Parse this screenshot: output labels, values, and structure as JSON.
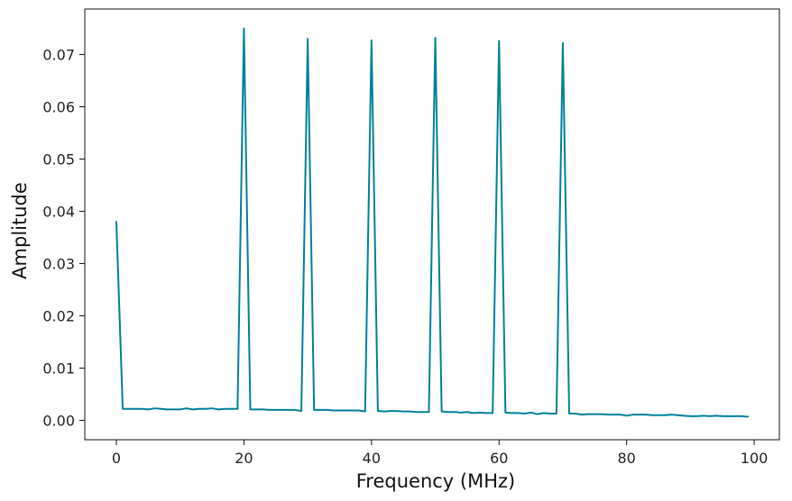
{
  "chart_data": {
    "type": "line",
    "xlabel": "Frequency (MHz)",
    "ylabel": "Amplitude",
    "xlim": [
      -4.95,
      103.95
    ],
    "ylim": [
      -0.0037,
      0.0787
    ],
    "x_ticks": [
      0,
      20,
      40,
      60,
      80,
      100
    ],
    "y_ticks": [
      0.0,
      0.01,
      0.02,
      0.03,
      0.04,
      0.05,
      0.06,
      0.07
    ],
    "x_tick_labels": [
      "0",
      "20",
      "40",
      "60",
      "80",
      "100"
    ],
    "y_tick_labels": [
      "0.00",
      "0.01",
      "0.02",
      "0.03",
      "0.04",
      "0.05",
      "0.06",
      "0.07"
    ],
    "grid": false,
    "legend": "none",
    "series": [
      {
        "color": "#00809b",
        "x": [
          0,
          1,
          2,
          3,
          4,
          5,
          6,
          7,
          8,
          9,
          10,
          11,
          12,
          13,
          14,
          15,
          16,
          17,
          18,
          19,
          20,
          21,
          22,
          23,
          24,
          25,
          26,
          27,
          28,
          29,
          30,
          31,
          32,
          33,
          34,
          35,
          36,
          37,
          38,
          39,
          40,
          41,
          42,
          43,
          44,
          45,
          46,
          47,
          48,
          49,
          50,
          51,
          52,
          53,
          54,
          55,
          56,
          57,
          58,
          59,
          60,
          61,
          62,
          63,
          64,
          65,
          66,
          67,
          68,
          69,
          70,
          71,
          72,
          73,
          74,
          75,
          76,
          77,
          78,
          79,
          80,
          81,
          82,
          83,
          84,
          85,
          86,
          87,
          88,
          89,
          90,
          91,
          92,
          93,
          94,
          95,
          96,
          97,
          98,
          99
        ],
        "y": [
          0.038,
          0.0022,
          0.0022,
          0.0022,
          0.0022,
          0.0021,
          0.0023,
          0.0022,
          0.0021,
          0.0021,
          0.0021,
          0.0023,
          0.0021,
          0.0022,
          0.0022,
          0.0023,
          0.0021,
          0.0022,
          0.0022,
          0.0022,
          0.075,
          0.0021,
          0.0021,
          0.0021,
          0.002,
          0.002,
          0.002,
          0.002,
          0.002,
          0.0018,
          0.073,
          0.002,
          0.002,
          0.002,
          0.0019,
          0.0019,
          0.0019,
          0.0019,
          0.0019,
          0.0017,
          0.0727,
          0.0018,
          0.0017,
          0.0018,
          0.0018,
          0.0017,
          0.0017,
          0.0016,
          0.0016,
          0.0016,
          0.0732,
          0.0017,
          0.0016,
          0.0016,
          0.0015,
          0.0016,
          0.0014,
          0.0015,
          0.0014,
          0.0014,
          0.0726,
          0.0015,
          0.0014,
          0.0014,
          0.0013,
          0.0015,
          0.0012,
          0.0014,
          0.0013,
          0.0013,
          0.0722,
          0.0013,
          0.0013,
          0.0011,
          0.0012,
          0.0012,
          0.0012,
          0.0011,
          0.0011,
          0.0011,
          0.0009,
          0.0011,
          0.0011,
          0.0011,
          0.001,
          0.001,
          0.001,
          0.0011,
          0.001,
          0.0009,
          0.0008,
          0.0008,
          0.0009,
          0.0008,
          0.0009,
          0.0008,
          0.0008,
          0.0008,
          0.0008,
          0.0007
        ]
      }
    ]
  }
}
